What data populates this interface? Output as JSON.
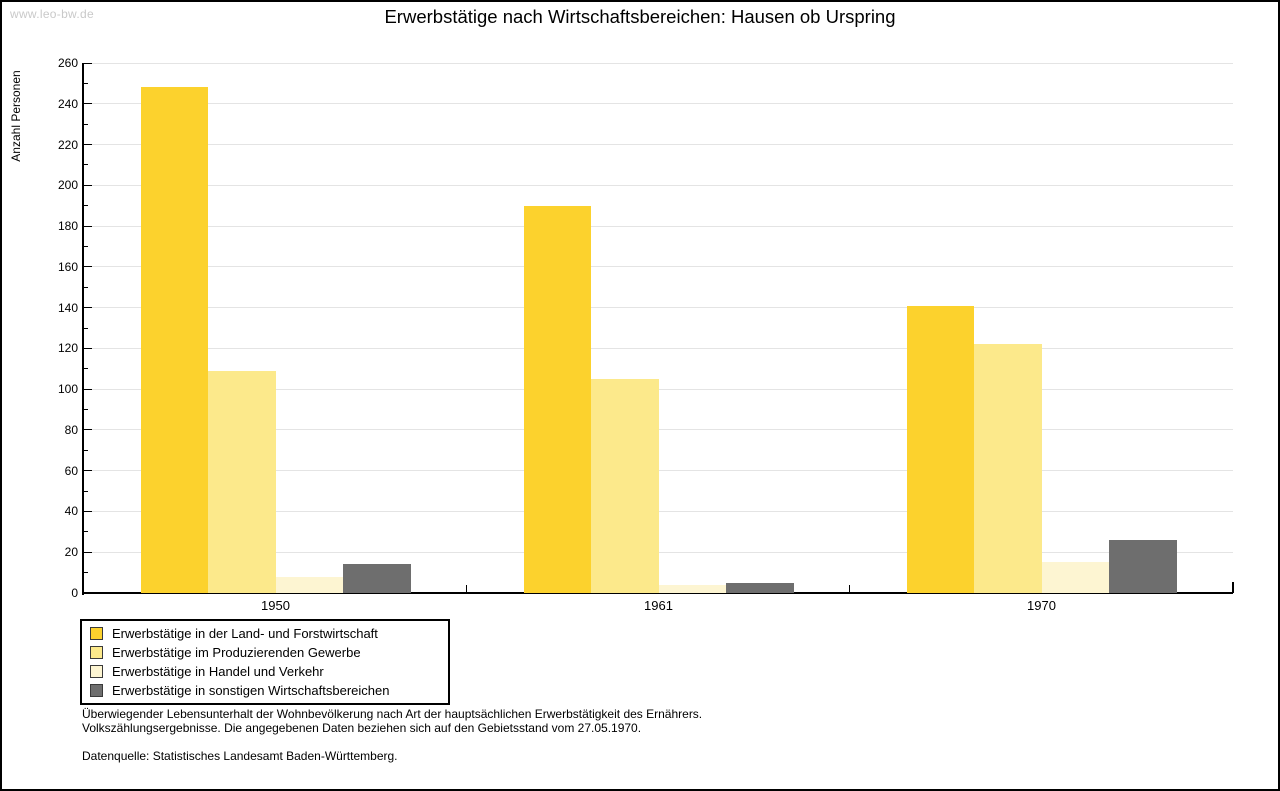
{
  "watermark": "www.leo-bw.de",
  "chart_data": {
    "type": "bar",
    "title": "Erwerbstätige nach Wirtschaftsbereichen: Hausen ob Urspring",
    "xlabel": "",
    "ylabel": "Anzahl Personen",
    "categories": [
      "1950",
      "1961",
      "1970"
    ],
    "series": [
      {
        "name": "Erwerbstätige in der Land- und Forstwirtschaft",
        "color": "#fcd22d",
        "values": [
          248,
          190,
          141
        ]
      },
      {
        "name": "Erwerbstätige im Produzierenden Gewerbe",
        "color": "#fce98b",
        "values": [
          109,
          105,
          122
        ]
      },
      {
        "name": "Erwerbstätige in Handel und Verkehr",
        "color": "#fdf5d2",
        "values": [
          8,
          4,
          15
        ]
      },
      {
        "name": "Erwerbstätige in sonstigen Wirtschaftsbereichen",
        "color": "#6e6e6e",
        "values": [
          14,
          5,
          26
        ]
      }
    ],
    "ylim": [
      0,
      260
    ],
    "ytick_step": 20,
    "yminor_step": 10,
    "grid": "horizontal-major",
    "legend_position": "bottom-left"
  },
  "footnotes": {
    "line1": "Überwiegender Lebensunterhalt der Wohnbevölkerung nach Art der hauptsächlichen Erwerbstätigkeit des Ernährers.",
    "line2": "Volkszählungsergebnisse. Die angegebenen Daten beziehen sich auf den Gebietsstand vom 27.05.1970.",
    "source": "Datenquelle: Statistisches Landesamt Baden-Württemberg."
  },
  "colors": {
    "gridline": "#e4e4e4",
    "axis": "#000000",
    "watermark": "#c9c9c9",
    "background": "#ffffff"
  }
}
